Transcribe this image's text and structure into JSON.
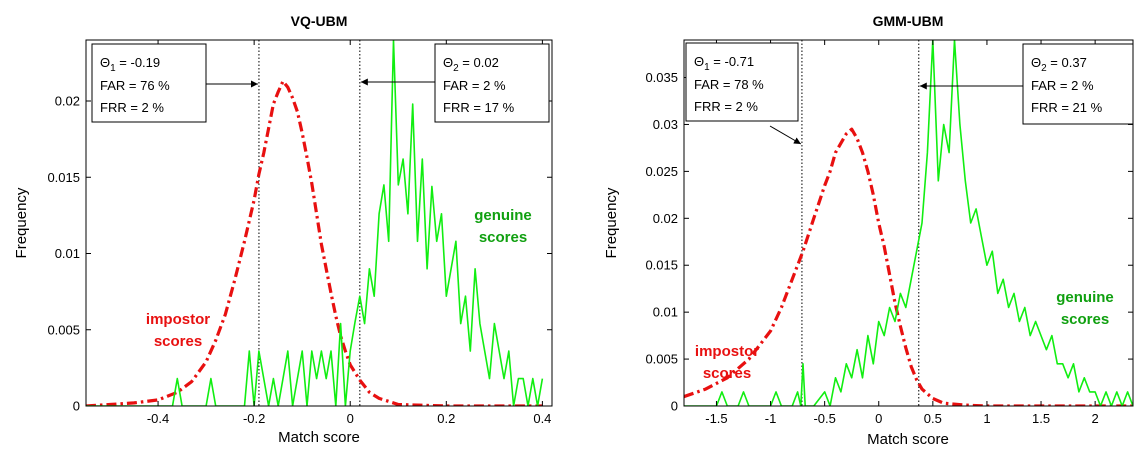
{
  "chart_data": [
    {
      "type": "line",
      "title": "VQ-UBM",
      "xlabel": "Match score",
      "ylabel": "Frequency",
      "xlim": [
        -0.55,
        0.42
      ],
      "ylim": [
        0,
        0.024
      ],
      "xticks": [
        "-0.4",
        "-0.2",
        "0",
        "0.2",
        "0.4"
      ],
      "xtick_values": [
        -0.4,
        -0.2,
        0,
        0.2,
        0.4
      ],
      "yticks": [
        "0",
        "0.005",
        "0.01",
        "0.015",
        "0.02"
      ],
      "ytick_values": [
        0,
        0.005,
        0.01,
        0.015,
        0.02
      ],
      "thresholds": [
        {
          "value": -0.19,
          "symbol": "Θ",
          "sub": "1",
          "text": " = -0.19",
          "far": "FAR = 76 %",
          "frr": "FRR = 2 %"
        },
        {
          "value": 0.02,
          "symbol": "Θ",
          "sub": "2",
          "text": " = 0.02",
          "far": "FAR = 2 %",
          "frr": "FRR = 17 %"
        }
      ],
      "class_labels": {
        "impostor": [
          "impostor",
          "scores"
        ],
        "genuine": [
          "genuine",
          "scores"
        ]
      },
      "series": [
        {
          "name": "impostor scores",
          "color": "#e81010",
          "style": "dashdot",
          "x": [
            -0.55,
            -0.5,
            -0.45,
            -0.4,
            -0.36,
            -0.33,
            -0.3,
            -0.28,
            -0.26,
            -0.24,
            -0.22,
            -0.2,
            -0.19,
            -0.18,
            -0.17,
            -0.16,
            -0.15,
            -0.14,
            -0.13,
            -0.12,
            -0.11,
            -0.1,
            -0.09,
            -0.08,
            -0.07,
            -0.06,
            -0.05,
            -0.04,
            -0.03,
            -0.02,
            -0.01,
            0,
            0.02,
            0.04,
            0.06,
            0.08,
            0.1,
            0.15,
            0.2,
            0.3,
            0.4
          ],
          "y": [
            0,
            0.0001,
            0.0002,
            0.0004,
            0.0009,
            0.0016,
            0.0029,
            0.0043,
            0.006,
            0.0083,
            0.0108,
            0.0135,
            0.0152,
            0.0166,
            0.0182,
            0.0198,
            0.0206,
            0.0213,
            0.0209,
            0.0202,
            0.0193,
            0.0179,
            0.0163,
            0.0146,
            0.0126,
            0.0106,
            0.009,
            0.0074,
            0.0059,
            0.0046,
            0.0036,
            0.0027,
            0.0017,
            0.0009,
            0.0005,
            0.0003,
            0.0001,
            5e-05,
            0,
            0,
            0
          ]
        },
        {
          "name": "genuine scores",
          "color": "#11ee11",
          "style": "solid",
          "x": [
            -0.55,
            -0.4,
            -0.37,
            -0.36,
            -0.35,
            -0.3,
            -0.29,
            -0.28,
            -0.25,
            -0.22,
            -0.21,
            -0.2,
            -0.19,
            -0.17,
            -0.16,
            -0.15,
            -0.14,
            -0.13,
            -0.12,
            -0.11,
            -0.1,
            -0.09,
            -0.08,
            -0.07,
            -0.06,
            -0.05,
            -0.04,
            -0.03,
            -0.02,
            -0.01,
            0,
            0.01,
            0.02,
            0.03,
            0.04,
            0.05,
            0.06,
            0.07,
            0.08,
            0.09,
            0.1,
            0.11,
            0.12,
            0.13,
            0.14,
            0.15,
            0.16,
            0.17,
            0.18,
            0.19,
            0.2,
            0.21,
            0.22,
            0.23,
            0.24,
            0.25,
            0.26,
            0.27,
            0.28,
            0.29,
            0.3,
            0.31,
            0.32,
            0.33,
            0.34,
            0.35,
            0.36,
            0.37,
            0.38,
            0.39,
            0.4
          ],
          "y": [
            0,
            0,
            0,
            0.0018,
            0,
            0,
            0.0018,
            0,
            0,
            0,
            0.0036,
            0,
            0.0036,
            0,
            0.0018,
            0,
            0.0018,
            0.0036,
            0,
            0.0018,
            0.0036,
            0,
            0.0036,
            0.0018,
            0.0036,
            0.0018,
            0.0036,
            0,
            0.0054,
            0,
            0.0036,
            0.0055,
            0.0072,
            0.0054,
            0.009,
            0.0072,
            0.0126,
            0.0145,
            0.0108,
            0.024,
            0.0145,
            0.0162,
            0.0126,
            0.0198,
            0.0108,
            0.0162,
            0.009,
            0.0144,
            0.0108,
            0.0126,
            0.0072,
            0.009,
            0.0108,
            0.0054,
            0.0072,
            0.0036,
            0.009,
            0.0054,
            0.0036,
            0.0018,
            0.0054,
            0.0036,
            0.0018,
            0.0036,
            0,
            0.0018,
            0.0018,
            0,
            0.0018,
            0,
            0.0018
          ]
        }
      ]
    },
    {
      "type": "line",
      "title": "GMM-UBM",
      "xlabel": "Match score",
      "ylabel": "Frequency",
      "xlim": [
        -1.8,
        2.35
      ],
      "ylim": [
        0,
        0.039
      ],
      "xticks": [
        "-1.5",
        "-1",
        "-0.5",
        "0",
        "0.5",
        "1",
        "1.5",
        "2"
      ],
      "xtick_values": [
        -1.5,
        -1,
        -0.5,
        0,
        0.5,
        1,
        1.5,
        2
      ],
      "yticks": [
        "0",
        "0.005",
        "0.01",
        "0.015",
        "0.02",
        "0.025",
        "0.03",
        "0.035"
      ],
      "ytick_values": [
        0,
        0.005,
        0.01,
        0.015,
        0.02,
        0.025,
        0.03,
        0.035
      ],
      "thresholds": [
        {
          "value": -0.71,
          "symbol": "Θ",
          "sub": "1",
          "text": " = -0.71",
          "far": "FAR = 78 %",
          "frr": "FRR = 2 %"
        },
        {
          "value": 0.37,
          "symbol": "Θ",
          "sub": "2",
          "text": " = 0.37",
          "far": "FAR = 2 %",
          "frr": "FRR = 21 %"
        }
      ],
      "class_labels": {
        "impostor": [
          "impostor",
          "scores"
        ],
        "genuine": [
          "genuine",
          "scores"
        ]
      },
      "series": [
        {
          "name": "impostor scores",
          "color": "#e81010",
          "style": "dashdot",
          "x": [
            -1.8,
            -1.6,
            -1.4,
            -1.2,
            -1.0,
            -0.9,
            -0.8,
            -0.7,
            -0.6,
            -0.5,
            -0.45,
            -0.4,
            -0.35,
            -0.3,
            -0.25,
            -0.2,
            -0.15,
            -0.1,
            -0.05,
            0,
            0.05,
            0.1,
            0.15,
            0.2,
            0.25,
            0.3,
            0.35,
            0.4,
            0.5,
            0.6,
            0.8,
            1.0,
            1.5,
            2.0,
            2.35
          ],
          "y": [
            0.001,
            0.0018,
            0.003,
            0.005,
            0.008,
            0.0105,
            0.0135,
            0.0165,
            0.02,
            0.0235,
            0.025,
            0.027,
            0.028,
            0.029,
            0.0295,
            0.0285,
            0.027,
            0.025,
            0.0225,
            0.0195,
            0.017,
            0.014,
            0.011,
            0.0085,
            0.0062,
            0.0042,
            0.0028,
            0.0018,
            0.0008,
            0.0003,
            0.0001,
            0,
            0,
            0,
            0
          ]
        },
        {
          "name": "genuine scores",
          "color": "#11ee11",
          "style": "solid",
          "x": [
            -1.8,
            -1.5,
            -1.45,
            -1.4,
            -1.3,
            -1.25,
            -1.2,
            -1.0,
            -0.95,
            -0.9,
            -0.8,
            -0.75,
            -0.72,
            -0.7,
            -0.68,
            -0.6,
            -0.5,
            -0.45,
            -0.4,
            -0.35,
            -0.3,
            -0.25,
            -0.2,
            -0.15,
            -0.1,
            -0.05,
            0,
            0.05,
            0.1,
            0.15,
            0.2,
            0.25,
            0.3,
            0.35,
            0.4,
            0.45,
            0.5,
            0.55,
            0.6,
            0.65,
            0.7,
            0.75,
            0.8,
            0.85,
            0.9,
            0.95,
            1.0,
            1.05,
            1.1,
            1.15,
            1.2,
            1.25,
            1.3,
            1.35,
            1.4,
            1.45,
            1.5,
            1.55,
            1.6,
            1.65,
            1.7,
            1.75,
            1.8,
            1.85,
            1.9,
            1.95,
            2.0,
            2.05,
            2.1,
            2.15,
            2.2,
            2.25,
            2.3,
            2.35
          ],
          "y": [
            0,
            0,
            0.0015,
            0,
            0,
            0.0015,
            0,
            0,
            0.0015,
            0,
            0,
            0.0015,
            0,
            0.0045,
            0,
            0,
            0.0015,
            0,
            0.003,
            0.0015,
            0.0045,
            0.003,
            0.006,
            0.003,
            0.0075,
            0.0045,
            0.009,
            0.0075,
            0.0105,
            0.009,
            0.012,
            0.0105,
            0.0135,
            0.0165,
            0.0195,
            0.027,
            0.039,
            0.024,
            0.03,
            0.027,
            0.039,
            0.03,
            0.024,
            0.0195,
            0.021,
            0.018,
            0.015,
            0.0165,
            0.012,
            0.0135,
            0.0105,
            0.012,
            0.009,
            0.0105,
            0.0075,
            0.009,
            0.0075,
            0.006,
            0.0075,
            0.0045,
            0.0045,
            0.003,
            0.0045,
            0.0015,
            0.003,
            0.0015,
            0.0015,
            0,
            0.0015,
            0,
            0.0015,
            0,
            0.0015,
            0
          ]
        }
      ]
    }
  ]
}
